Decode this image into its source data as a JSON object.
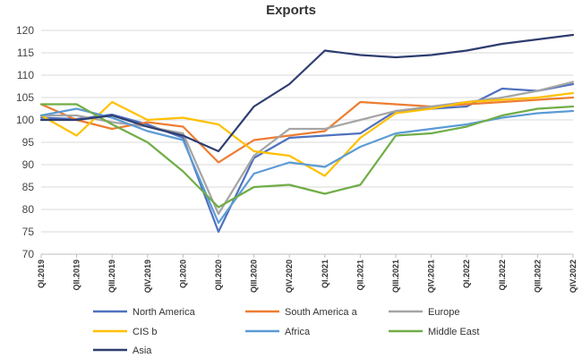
{
  "chart_data": {
    "type": "line",
    "title": "Exports",
    "xlabel": "",
    "ylabel": "",
    "ylim": [
      70,
      120
    ],
    "yticks": [
      70,
      75,
      80,
      85,
      90,
      95,
      100,
      105,
      110,
      115,
      120
    ],
    "grid": true,
    "legend_position": "bottom",
    "categories": [
      "QI.2019",
      "QII.2019",
      "QIII.2019",
      "QIV.2019",
      "QI.2020",
      "QII.2020",
      "QIII.2020",
      "QIV.2020",
      "QI.2021",
      "QII.2021",
      "QIII.2021",
      "QIV.2021",
      "QI.2022",
      "QII.2022",
      "QIII.2022",
      "QIV.2022"
    ],
    "series": [
      {
        "name": "North America",
        "color": "#4f71be",
        "values": [
          100.5,
          100.2,
          101.2,
          99.0,
          96.0,
          75.0,
          91.5,
          96.0,
          96.5,
          97.0,
          102.0,
          102.5,
          103.0,
          107.0,
          106.5,
          108.0
        ]
      },
      {
        "name": "South America a",
        "color": "#ed7d31",
        "values": [
          103.5,
          100.0,
          98.0,
          99.5,
          98.5,
          90.5,
          95.5,
          96.5,
          97.5,
          104.0,
          103.5,
          103.0,
          103.5,
          104.0,
          104.5,
          105.0
        ]
      },
      {
        "name": "Europe",
        "color": "#a5a5a5",
        "values": [
          101.0,
          101.0,
          99.5,
          98.5,
          97.0,
          79.0,
          92.0,
          98.0,
          98.0,
          100.0,
          102.0,
          103.0,
          104.0,
          105.0,
          106.5,
          108.5
        ]
      },
      {
        "name": "CIS b",
        "color": "#ffc000",
        "values": [
          101.0,
          96.5,
          104.0,
          100.0,
          100.5,
          99.0,
          93.0,
          92.0,
          87.5,
          96.0,
          101.5,
          102.5,
          104.0,
          104.5,
          105.0,
          106.0
        ]
      },
      {
        "name": "Africa",
        "color": "#5b9bd5",
        "values": [
          101.0,
          102.5,
          100.5,
          97.5,
          95.5,
          77.0,
          88.0,
          90.5,
          89.5,
          94.0,
          97.0,
          98.0,
          99.0,
          100.5,
          101.5,
          102.0
        ]
      },
      {
        "name": "Middle East",
        "color": "#70ad47",
        "values": [
          103.5,
          103.5,
          99.0,
          95.0,
          88.5,
          80.5,
          85.0,
          85.5,
          83.5,
          85.5,
          96.5,
          97.0,
          98.5,
          101.0,
          102.5,
          103.0
        ]
      },
      {
        "name": "Asia",
        "color": "#2e3d70",
        "values": [
          100.0,
          100.0,
          101.0,
          98.5,
          96.5,
          93.0,
          103.0,
          108.0,
          115.5,
          114.5,
          114.0,
          114.5,
          115.5,
          117.0,
          118.0,
          119.0
        ]
      }
    ]
  }
}
